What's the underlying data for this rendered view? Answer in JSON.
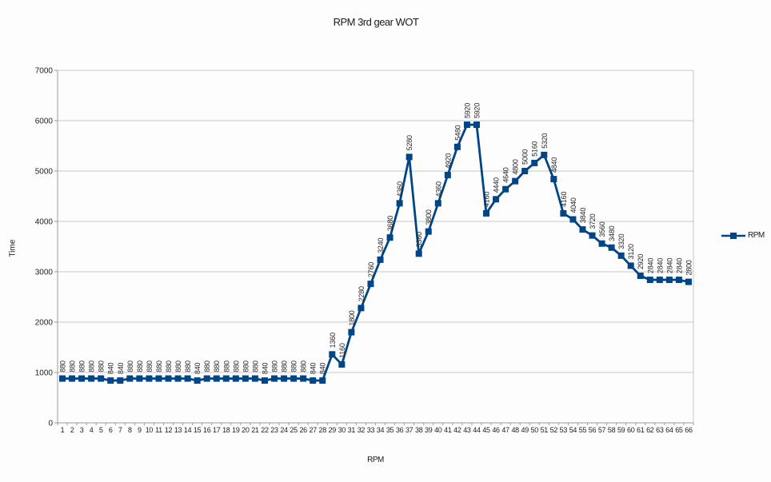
{
  "chart_data": {
    "type": "line",
    "title": "RPM 3rd gear WOT",
    "xlabel": "RPM",
    "ylabel": "Time",
    "ylim": [
      0,
      7000
    ],
    "y_ticks": [
      0,
      1000,
      2000,
      3000,
      4000,
      5000,
      6000,
      7000
    ],
    "grid": true,
    "legend_position": "right",
    "marker": "square",
    "data_labels": "value shown rotated 90 degrees above each point",
    "categories": [
      1,
      2,
      3,
      4,
      5,
      6,
      7,
      8,
      9,
      10,
      11,
      12,
      13,
      14,
      15,
      16,
      17,
      18,
      19,
      20,
      21,
      22,
      23,
      24,
      25,
      26,
      27,
      28,
      29,
      30,
      31,
      32,
      33,
      34,
      35,
      36,
      37,
      38,
      39,
      40,
      41,
      42,
      43,
      44,
      45,
      46,
      47,
      48,
      49,
      50,
      51,
      52,
      53,
      54,
      55,
      56,
      57,
      58,
      59,
      60,
      61,
      62,
      63,
      64,
      65,
      66
    ],
    "series": [
      {
        "name": "RPM",
        "values": [
          880,
          880,
          880,
          880,
          880,
          840,
          840,
          880,
          880,
          880,
          880,
          880,
          880,
          880,
          840,
          880,
          880,
          880,
          880,
          880,
          880,
          840,
          880,
          880,
          880,
          880,
          840,
          840,
          1360,
          1160,
          1800,
          2280,
          2760,
          3240,
          3680,
          4360,
          5280,
          3360,
          3800,
          4360,
          4920,
          5480,
          5920,
          5920,
          4160,
          4440,
          4640,
          4800,
          5000,
          5160,
          5320,
          4840,
          4160,
          4040,
          3840,
          3720,
          3560,
          3480,
          3320,
          3120,
          2920,
          2840,
          2840,
          2840,
          2840,
          2800
        ]
      }
    ],
    "colors": {
      "series": "#004586",
      "grid": "#c6c6c6",
      "axis": "#9a9a9a",
      "tick_text": "#1f1f1f",
      "data_label_text": "#262626"
    }
  },
  "legend": {
    "label": "RPM"
  }
}
